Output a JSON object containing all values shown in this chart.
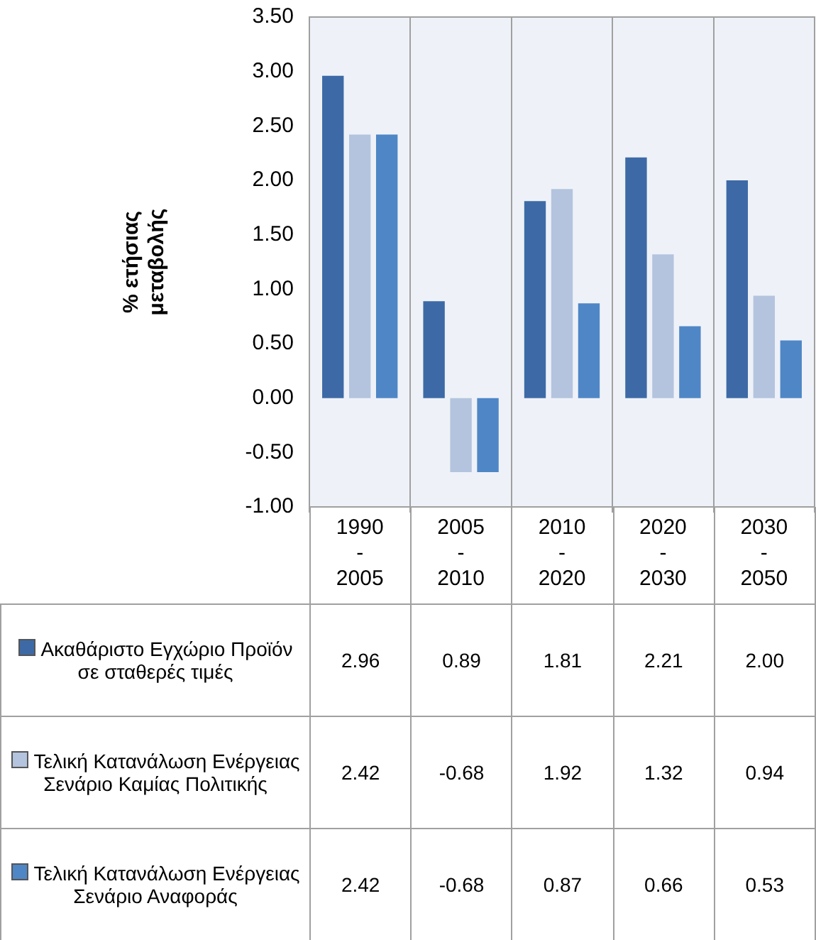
{
  "chart_data": {
    "type": "bar",
    "ylabel": "% ετήσιας μεταβολής",
    "categories": [
      "1990 - 2005",
      "2005 - 2010",
      "2010 - 2020",
      "2020 - 2030",
      "2030 - 2050"
    ],
    "series": [
      {
        "name": "Ακαθάριστο Εγχώριο Προϊόν σε σταθερές τιμές",
        "color": "#3d6aa6",
        "values": [
          2.96,
          0.89,
          1.81,
          2.21,
          2.0
        ],
        "value_labels": [
          "2.96",
          "0.89",
          "1.81",
          "2.21",
          "2.00"
        ]
      },
      {
        "name": "Τελική Κατανάλωση Ενέργειας Σενάριο Καμίας Πολιτικής",
        "color": "#b4c4de",
        "values": [
          2.42,
          -0.68,
          1.92,
          1.32,
          0.94
        ],
        "value_labels": [
          "2.42",
          "-0.68",
          "1.92",
          "1.32",
          "0.94"
        ]
      },
      {
        "name": "Τελική Κατανάλωση Ενέργειας Σενάριο Αναφοράς",
        "color": "#4f86c6",
        "values": [
          2.42,
          -0.68,
          0.87,
          0.66,
          0.53
        ],
        "value_labels": [
          "2.42",
          "-0.68",
          "0.87",
          "0.66",
          "0.53"
        ]
      }
    ],
    "ylim": [
      -1,
      3.5
    ],
    "yticks": [
      {
        "value": -1,
        "label": "-1.00"
      },
      {
        "value": -0.5,
        "label": "-0.50"
      },
      {
        "value": 0,
        "label": "0.00"
      },
      {
        "value": 0.5,
        "label": "0.50"
      },
      {
        "value": 1,
        "label": "1.00"
      },
      {
        "value": 1.5,
        "label": "1.50"
      },
      {
        "value": 2,
        "label": "2.00"
      },
      {
        "value": 2.5,
        "label": "2.50"
      },
      {
        "value": 3,
        "label": "3.00"
      },
      {
        "value": 3.5,
        "label": "3.50"
      }
    ],
    "grid": "x",
    "legend": "bottom"
  }
}
